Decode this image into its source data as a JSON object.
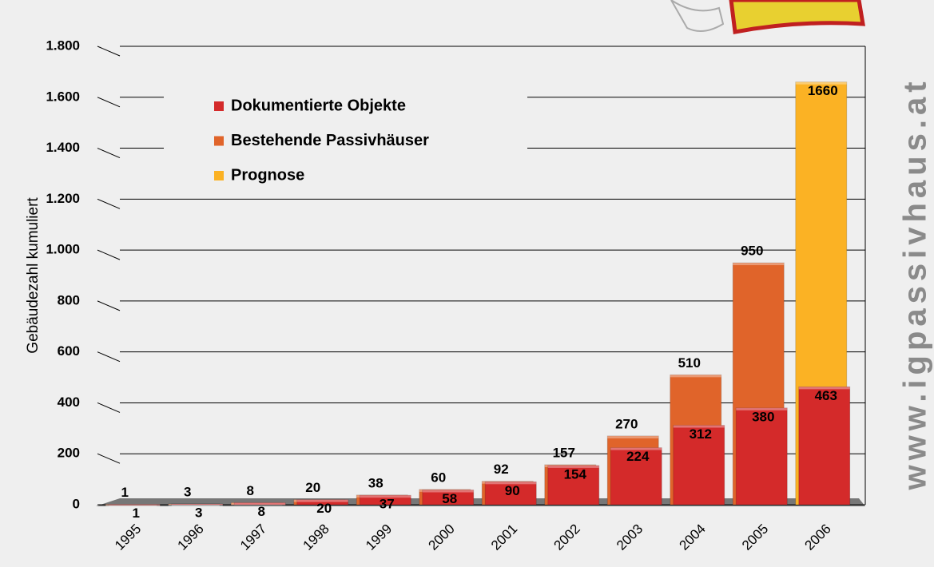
{
  "chart_data": {
    "type": "bar",
    "y_label": "Gebäudezahl kumuliert",
    "watermark": "www.igpassivhaus.at",
    "categories": [
      "1995",
      "1996",
      "1997",
      "1998",
      "1999",
      "2000",
      "2001",
      "2002",
      "2003",
      "2004",
      "2005",
      "2006"
    ],
    "series": [
      {
        "name": "Dokumentierte Objekte",
        "color": "#d42a2a",
        "values": [
          1,
          3,
          8,
          20,
          37,
          58,
          90,
          154,
          224,
          312,
          380,
          463
        ]
      },
      {
        "name": "Bestehende Passivhäuser",
        "color": "#e0642a",
        "values": [
          1,
          3,
          8,
          20,
          38,
          60,
          92,
          157,
          270,
          510,
          950,
          null
        ]
      },
      {
        "name": "Prognose",
        "color": "#fbb224",
        "values": [
          null,
          null,
          null,
          null,
          null,
          null,
          null,
          null,
          null,
          null,
          null,
          1660
        ]
      }
    ],
    "ylim": [
      0,
      1800
    ],
    "yticks": [
      0,
      200,
      400,
      600,
      800,
      {
        "value": 1000,
        "label": "1.000"
      },
      {
        "value": 1200,
        "label": "1.200"
      },
      {
        "value": 1400,
        "label": "1.400"
      },
      {
        "value": 1600,
        "label": "1.600"
      },
      {
        "value": 1800,
        "label": "1.800"
      }
    ],
    "grid": true
  }
}
